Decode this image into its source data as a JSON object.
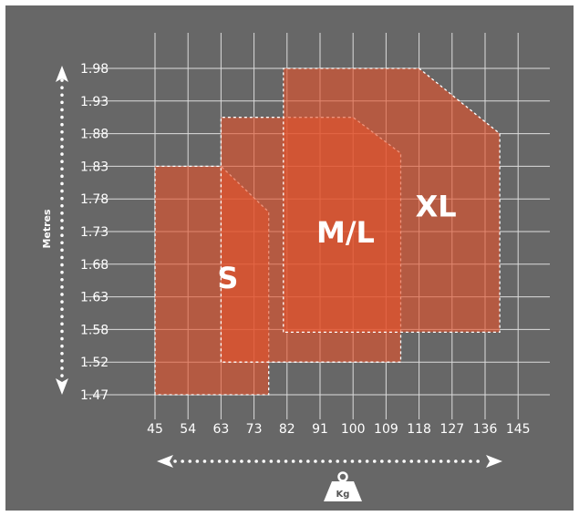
{
  "chart_data": {
    "type": "area",
    "x_ticks": [
      "45",
      "54",
      "63",
      "73",
      "82",
      "91",
      "100",
      "109",
      "118",
      "127",
      "136",
      "145"
    ],
    "y_ticks": [
      "1.47",
      "1.52",
      "1.58",
      "1.63",
      "1.68",
      "1.73",
      "1.78",
      "1.83",
      "1.88",
      "1.93",
      "1.98"
    ],
    "xlabel": "Kg",
    "ylabel": "Metres",
    "grid": true,
    "regions": [
      {
        "name": "S",
        "kg_min": 45,
        "kg_max": 77,
        "height_min": 1.47,
        "height_max": 1.83,
        "corner_cut": {
          "kg_start": 63,
          "height_end": 1.76
        }
      },
      {
        "name": "M/L",
        "kg_min": 63,
        "kg_max": 113,
        "height_min": 1.52,
        "height_max": 1.905,
        "corner_cut": {
          "kg_start": 100,
          "height_end": 1.85
        }
      },
      {
        "name": "XL",
        "kg_min": 81,
        "kg_max": 140,
        "height_min": 1.575,
        "height_max": 1.98,
        "corner_cut": {
          "kg_start": 118,
          "height_end": 1.88
        }
      }
    ],
    "colors": {
      "background": "#676767",
      "grid": "#dcdcdc",
      "region_fill": "#e4532c",
      "text": "#ffffff"
    }
  }
}
